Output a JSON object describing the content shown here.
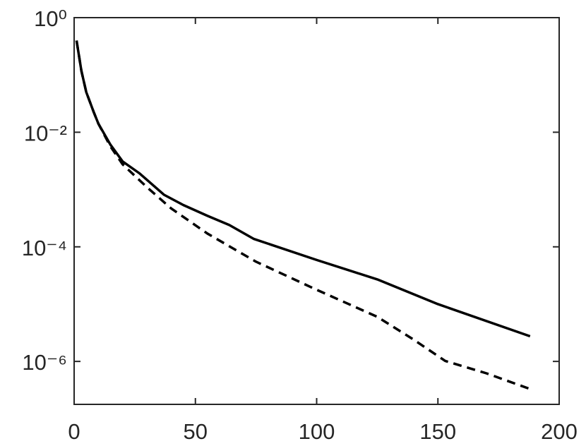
{
  "chart_data": {
    "type": "line",
    "log_y": true,
    "grid": false,
    "xlim": [
      0,
      200
    ],
    "xticks": [
      0,
      50,
      100,
      150,
      200
    ],
    "ylim": [
      1.78e-07,
      1
    ],
    "yticks": [
      {
        "value": 1,
        "label": "10⁰"
      },
      {
        "value": 0.01,
        "label": "10⁻²"
      },
      {
        "value": 0.0001,
        "label": "10⁻⁴"
      },
      {
        "value": 1e-06,
        "label": "10⁻⁶"
      }
    ],
    "series": [
      {
        "color": "#000000",
        "dash": false,
        "x": [
          1,
          3,
          5,
          8,
          10,
          15,
          20,
          27,
          37,
          45,
          55,
          64,
          74,
          100,
          125,
          150,
          188
        ],
        "values": [
          0.398,
          0.1175,
          0.0501,
          0.0229,
          0.0141,
          0.00603,
          0.00309,
          0.00191,
          0.000813,
          0.000537,
          0.000347,
          0.00024,
          0.000138,
          5.9e-05,
          2.7e-05,
          1e-05,
          2.75e-06
        ]
      },
      {
        "color": "#000000",
        "dash": true,
        "x": [
          1,
          3,
          5,
          8,
          10,
          15,
          20,
          30,
          40,
          55,
          75,
          100,
          125,
          140,
          153,
          170,
          188
        ],
        "values": [
          0.398,
          0.1175,
          0.0501,
          0.0229,
          0.0141,
          0.00562,
          0.00275,
          0.0011,
          0.000468,
          0.00017,
          5.5e-05,
          1.78e-05,
          6e-06,
          2.4e-06,
          1.02e-06,
          6.2e-07,
          3.3e-07
        ]
      }
    ]
  }
}
